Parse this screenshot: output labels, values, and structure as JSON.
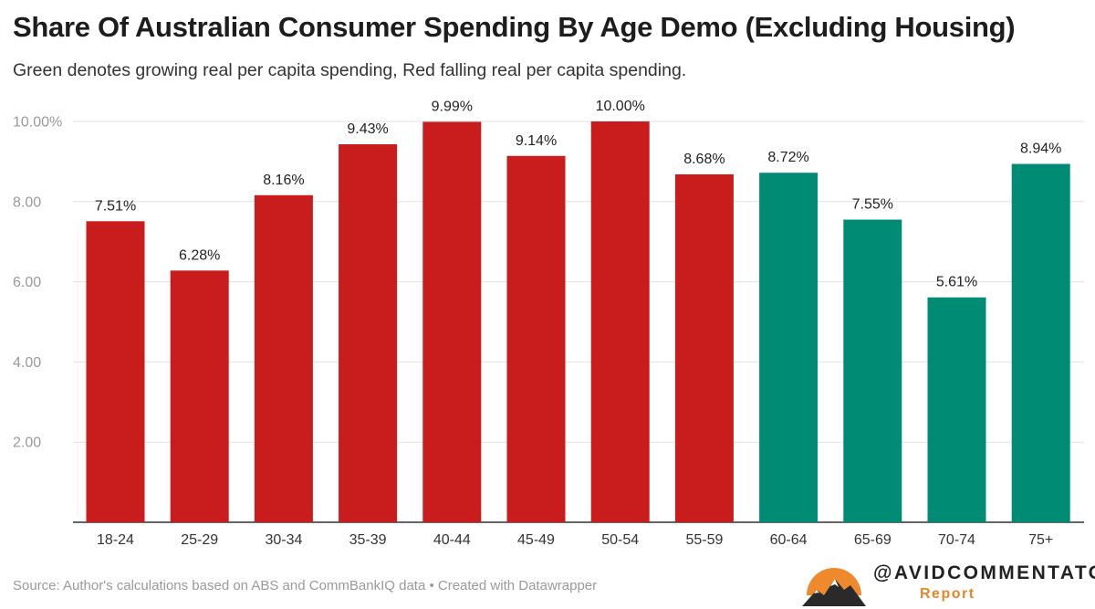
{
  "chart_data": {
    "type": "bar",
    "title": "Share Of Australian Consumer Spending By Age Demo (Excluding Housing)",
    "subtitle": "Green denotes growing real per capita spending, Red falling real per capita spending.",
    "categories": [
      "18-24",
      "25-29",
      "30-34",
      "35-39",
      "40-44",
      "45-49",
      "50-54",
      "55-59",
      "60-64",
      "65-69",
      "70-74",
      "75+"
    ],
    "values": [
      7.51,
      6.28,
      8.16,
      9.43,
      9.99,
      9.14,
      10.0,
      8.68,
      8.72,
      7.55,
      5.61,
      8.94
    ],
    "value_labels": [
      "7.51%",
      "6.28%",
      "8.16%",
      "9.43%",
      "9.99%",
      "9.14%",
      "10.00%",
      "8.68%",
      "8.72%",
      "7.55%",
      "5.61%",
      "8.94%"
    ],
    "trend": [
      "falling",
      "falling",
      "falling",
      "falling",
      "falling",
      "falling",
      "falling",
      "falling",
      "growing",
      "growing",
      "growing",
      "growing"
    ],
    "colors": {
      "falling": "#c91d1d",
      "growing": "#008b75"
    },
    "ylim": [
      0,
      10
    ],
    "yticks": [
      2,
      4,
      6,
      8,
      10
    ],
    "ytick_labels": [
      "2.00",
      "4.00",
      "6.00",
      "8.00",
      "10.00%"
    ],
    "xlabel": "",
    "ylabel": "",
    "grid": true,
    "legend": "none"
  },
  "footer": {
    "source": "Source: Author's calculations based on ABS and CommBankIQ data • Created with Datawrapper"
  },
  "brand": {
    "handle": "@AVIDCOMMENTATOR",
    "sub": "Report"
  }
}
